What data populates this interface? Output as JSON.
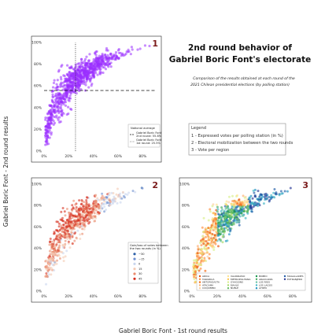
{
  "title_line1": "2nd round behavior of",
  "title_line2": "Gabriel Boric Font's electorate",
  "subtitle_line1": "Comparison of the results obtained at each round of the",
  "subtitle_line2": "2021 Chilean presidential elections (by polling station)",
  "legend_main": {
    "title": "Legend",
    "items": [
      "1 - Expressed votes per polling station (in %)",
      "2 - Electoral mobilization between the two rounds",
      "3 - Vote per region"
    ]
  },
  "colors": {
    "purple": "#9b30ff",
    "red": "#d7301f",
    "blue": "#2c5fa8",
    "dark_red_number": "#7a1a1a"
  },
  "chart_data": [
    {
      "panel": "1",
      "type": "scatter",
      "xlabel": "Gabriel Boric Font - 1st round results",
      "ylabel": "Gabriel Boric Font - 2nd round results",
      "xlim": [
        0,
        90
      ],
      "ylim": [
        0,
        100
      ],
      "x_ticks": [
        "0%",
        "20%",
        "40%",
        "60%",
        "80%"
      ],
      "y_ticks": [
        "0%",
        "20%",
        "40%",
        "60%",
        "80%",
        "100%"
      ],
      "grid": false,
      "legend_placement": "bottom-right",
      "legend": {
        "title": "National average",
        "entries": [
          "Gabriel Boric Font 2nd round: 55.8%",
          "Gabriel Boric Font 1st round: 25.5%"
        ]
      },
      "reference_lines": [
        {
          "orientation": "horizontal",
          "y": 55.8,
          "style": "dashed"
        },
        {
          "orientation": "vertical",
          "x": 25.5,
          "style": "dotted"
        }
      ],
      "series": [
        {
          "color": "#9b30ff",
          "shape": "point-cloud",
          "lower_envelope": [
            [
              2,
              2
            ],
            [
              10,
              18
            ],
            [
              20,
              35
            ],
            [
              30,
              50
            ],
            [
              40,
              62
            ],
            [
              50,
              72
            ],
            [
              60,
              80
            ],
            [
              70,
              88
            ],
            [
              80,
              93
            ],
            [
              85,
              96
            ]
          ],
          "upper_envelope": [
            [
              2,
              35
            ],
            [
              5,
              55
            ],
            [
              10,
              70
            ],
            [
              15,
              80
            ],
            [
              25,
              88
            ],
            [
              40,
              93
            ],
            [
              60,
              96
            ],
            [
              80,
              98
            ],
            [
              85,
              98
            ]
          ]
        }
      ]
    },
    {
      "panel": "2",
      "type": "scatter",
      "xlim": [
        0,
        90
      ],
      "ylim": [
        0,
        100
      ],
      "x_ticks": [
        "0%",
        "20%",
        "40%",
        "60%",
        "80%"
      ],
      "y_ticks": [
        "0%",
        "20%",
        "40%",
        "60%",
        "80%",
        "100%"
      ],
      "legend_placement": "bottom-right",
      "legend": {
        "title_line1": "Gain/loss of votes between",
        "title_line2": "the two rounds (in %)",
        "entries": [
          {
            "label": "−30",
            "color": "#2c5fa8"
          },
          {
            "label": "−15",
            "color": "#6f8fcf"
          },
          {
            "label": "0",
            "color": "#c9d6ee"
          },
          {
            "label": "15",
            "color": "#f3c9b3"
          },
          {
            "label": "30",
            "color": "#ea8a6c"
          },
          {
            "label": "45",
            "color": "#d7301f"
          }
        ]
      }
    },
    {
      "panel": "3",
      "type": "scatter",
      "xlim": [
        0,
        90
      ],
      "ylim": [
        0,
        100
      ],
      "x_ticks": [
        "0%",
        "20%",
        "40%",
        "60%",
        "80%"
      ],
      "y_ticks": [
        "0%",
        "20%",
        "40%",
        "60%",
        "80%",
        "100%"
      ],
      "legend_placement": "bottom-center",
      "legend": {
        "entries": [
          {
            "label": "ARICA",
            "color": "#e6550d"
          },
          {
            "label": "TARAPACÁ",
            "color": "#fd8d3c"
          },
          {
            "label": "ANTOFAGASTA",
            "color": "#f16913"
          },
          {
            "label": "ATACAMA",
            "color": "#fdae6b"
          },
          {
            "label": "COQUIMBO",
            "color": "#fdd0a2"
          },
          {
            "label": "VALPARAÍSO",
            "color": "#fee391"
          },
          {
            "label": "METROPOLITANA",
            "color": "#fec44f"
          },
          {
            "label": "O'HIGGINS",
            "color": "#d9ef8b"
          },
          {
            "label": "MAULE",
            "color": "#a6d96a"
          },
          {
            "label": "ÑUBLE",
            "color": "#66bd63"
          },
          {
            "label": "BIOBÍO",
            "color": "#1a9850"
          },
          {
            "label": "ARAUCANÍA",
            "color": "#41ab5d"
          },
          {
            "label": "LOS RÍOS",
            "color": "#66c2a4"
          },
          {
            "label": "LOS LAGOS",
            "color": "#41b6c4"
          },
          {
            "label": "AYSÉN",
            "color": "#1d91c0"
          },
          {
            "label": "MAGALLANES",
            "color": "#225ea8"
          },
          {
            "label": "EXTRANJERO",
            "color": "#253494"
          }
        ]
      }
    }
  ]
}
